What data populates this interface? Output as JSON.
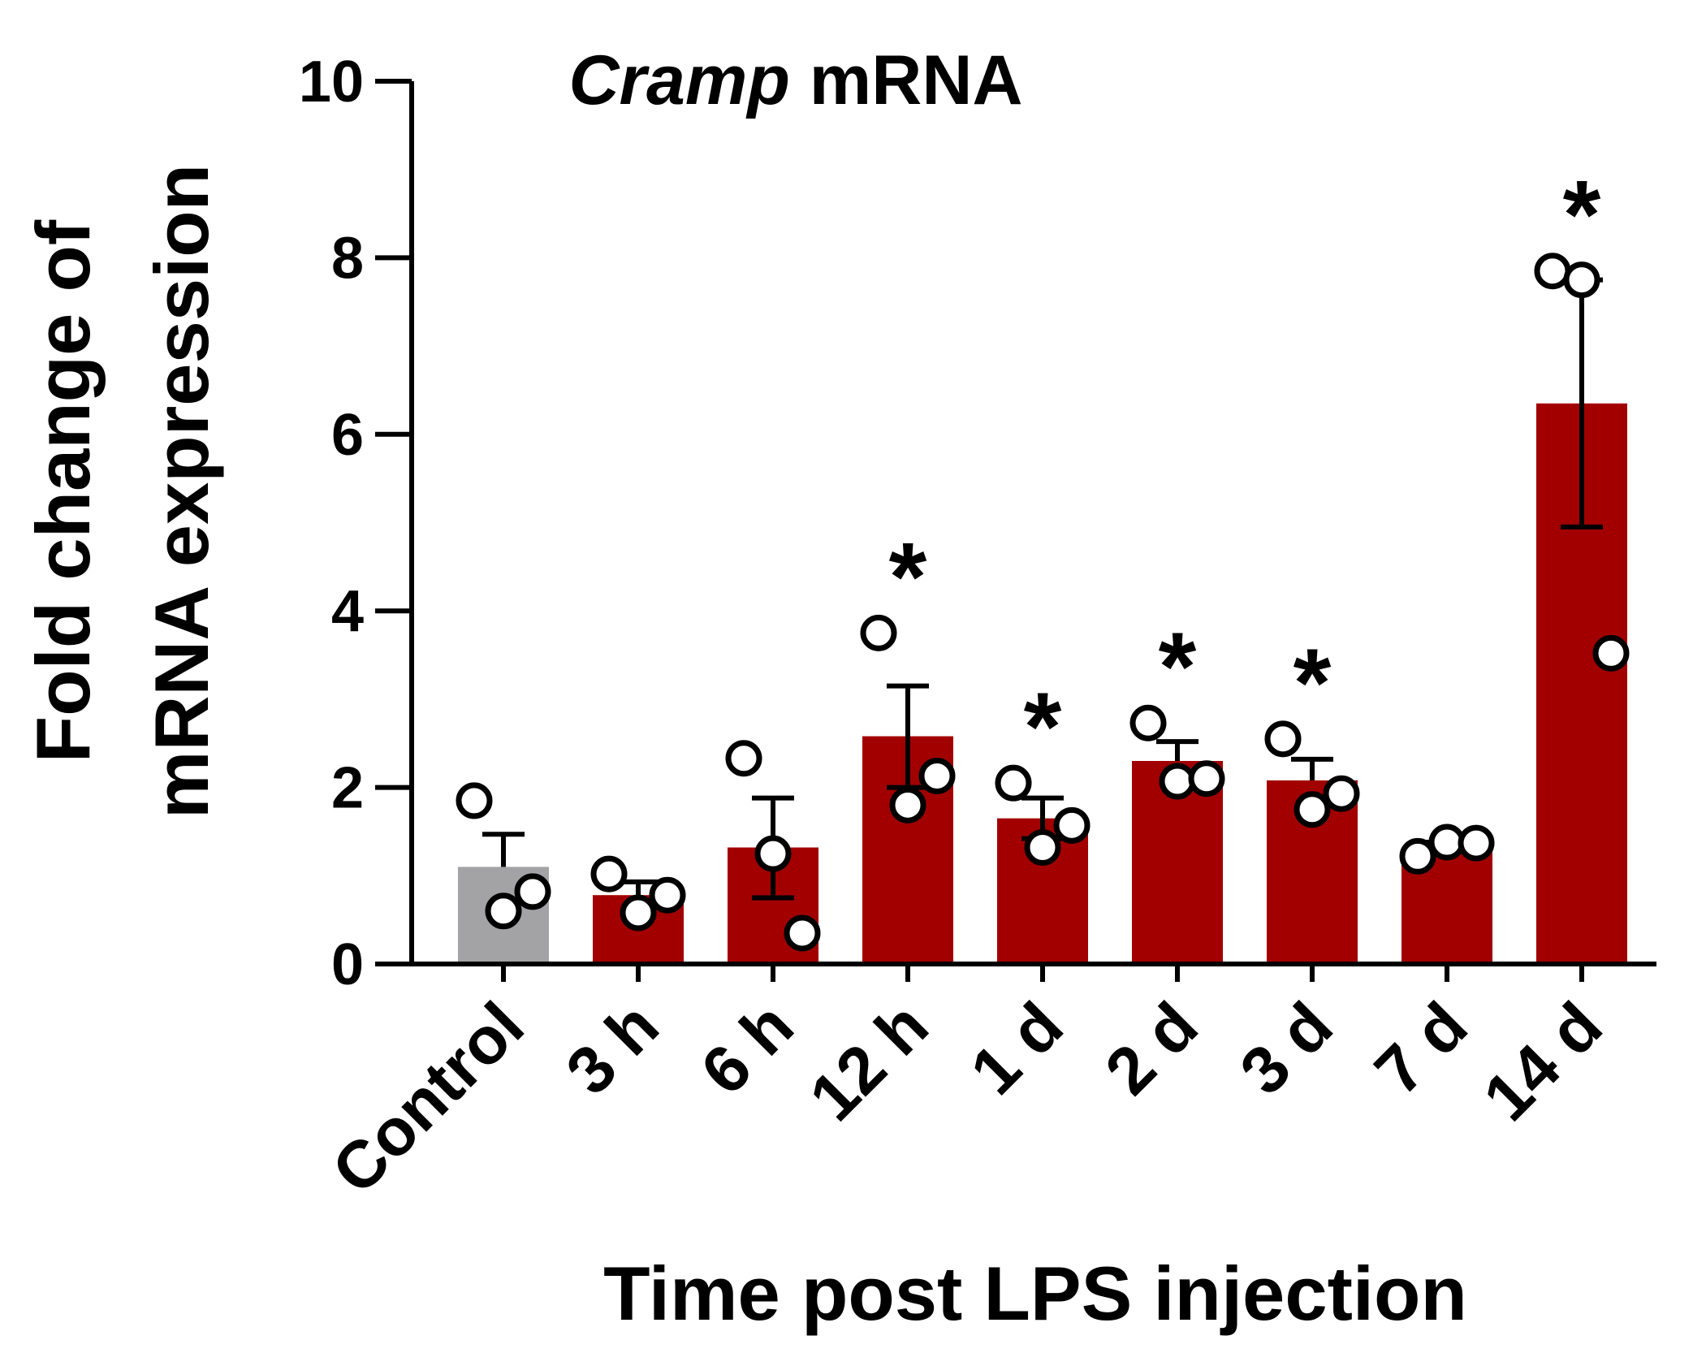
{
  "chart_data": {
    "type": "bar",
    "title_italic": "Cramp",
    "title_rest": " mRNA",
    "ylabel_line1": "Fold change of",
    "ylabel_line2": "mRNA expression",
    "xlabel": "Time post LPS injection",
    "ylim": [
      0,
      10
    ],
    "yticks": [
      0,
      2,
      4,
      6,
      8,
      10
    ],
    "categories": [
      "Control",
      "3 h",
      "6 h",
      "12 h",
      "1 d",
      "2 d",
      "3 d",
      "7 d",
      "14 d"
    ],
    "values": [
      1.1,
      0.78,
      1.32,
      2.58,
      1.65,
      2.3,
      2.08,
      1.3,
      6.35
    ],
    "error_upper": [
      1.47,
      0.93,
      1.88,
      3.15,
      1.88,
      2.52,
      2.32,
      1.38,
      7.75
    ],
    "error_lower": [
      1.1,
      0.78,
      0.75,
      2.0,
      1.42,
      2.3,
      2.08,
      1.3,
      4.95
    ],
    "points": [
      [
        1.85,
        0.6,
        0.82
      ],
      [
        1.02,
        0.58,
        0.78
      ],
      [
        2.33,
        1.25,
        0.35
      ],
      [
        3.75,
        1.8,
        2.13
      ],
      [
        2.05,
        1.32,
        1.57
      ],
      [
        2.73,
        2.07,
        2.1
      ],
      [
        2.55,
        1.75,
        1.93
      ],
      [
        1.22,
        1.38,
        1.37
      ],
      [
        7.85,
        7.75,
        3.52
      ]
    ],
    "significance": [
      "",
      "",
      "",
      "*",
      "*",
      "*",
      "*",
      "",
      "*"
    ],
    "colors": {
      "control_bar": "#a3a3a6",
      "treatment_bar": "#a20000",
      "axis": "#000000",
      "marker_fill": "#ffffff"
    }
  }
}
